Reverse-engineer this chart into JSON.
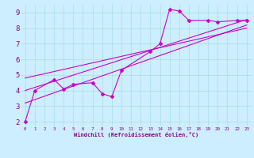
{
  "xlabel": "Windchill (Refroidissement éolien,°C)",
  "bg_color": "#cceeff",
  "line_color": "#cc00cc",
  "grid_color": "#aadddd",
  "xlim": [
    -0.5,
    23.5
  ],
  "ylim": [
    1.7,
    9.5
  ],
  "xticks": [
    0,
    1,
    2,
    3,
    4,
    5,
    6,
    7,
    8,
    9,
    10,
    11,
    12,
    13,
    14,
    15,
    16,
    17,
    18,
    19,
    20,
    21,
    22,
    23
  ],
  "yticks": [
    2,
    3,
    4,
    5,
    6,
    7,
    8,
    9
  ],
  "series1_x": [
    0,
    1,
    3,
    4,
    5,
    7,
    8,
    9,
    10,
    13,
    14,
    15,
    16,
    17,
    19,
    20,
    22,
    23
  ],
  "series1_y": [
    2.0,
    4.0,
    4.7,
    4.1,
    4.4,
    4.5,
    3.8,
    3.6,
    5.3,
    6.5,
    7.0,
    9.2,
    9.1,
    8.5,
    8.5,
    8.4,
    8.5,
    8.5
  ],
  "line1_x": [
    0,
    23
  ],
  "line1_y": [
    3.2,
    8.2
  ],
  "line2_x": [
    0,
    23
  ],
  "line2_y": [
    4.0,
    8.55
  ],
  "line3_x": [
    0,
    23
  ],
  "line3_y": [
    4.8,
    8.0
  ]
}
